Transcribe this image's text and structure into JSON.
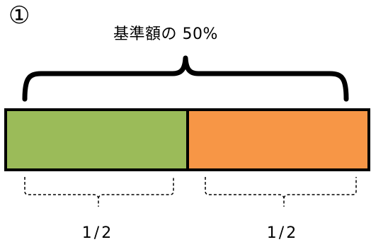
{
  "diagram": {
    "number_mark": "①",
    "total_label": "基準額の 50%",
    "segments": [
      {
        "label": "1/2",
        "color": "#9bbb59",
        "share": 0.5
      },
      {
        "label": "1/2",
        "color": "#f79646",
        "share": 0.5
      }
    ],
    "border_color": "#000000"
  }
}
